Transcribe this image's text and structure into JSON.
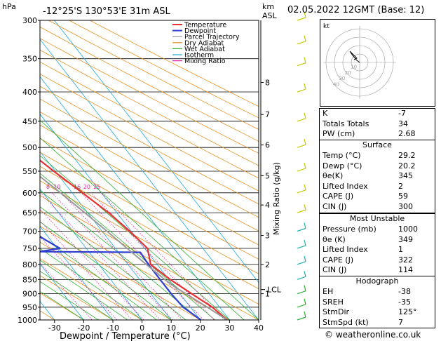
{
  "header": {
    "station": "-12°25'S  130°53'E  31m  ASL",
    "hpa_label": "hPa",
    "km_label": "km",
    "asl_label": "ASL",
    "datetime": "02.05.2022  12GMT  (Base: 12)"
  },
  "legend": [
    {
      "name": "Temperature",
      "color": "#e83030"
    },
    {
      "name": "Dewpoint",
      "color": "#2f3fd0"
    },
    {
      "name": "Parcel Trajectory",
      "color": "#999999"
    },
    {
      "name": "Dry Adiabat",
      "color": "#e8901c"
    },
    {
      "name": "Wet Adiabat",
      "color": "#30b030"
    },
    {
      "name": "Isotherm",
      "color": "#20a8e0"
    },
    {
      "name": "Mixing Ratio",
      "color": "#e020a0"
    }
  ],
  "chart_data": {
    "type": "line",
    "xlabel": "Dewpoint / Temperature (°C)",
    "ylabel_right": "Mixing Ratio (g/kg)",
    "xlim": [
      -35,
      40
    ],
    "pressure_range": [
      300,
      1000
    ],
    "x_ticks": [
      "-30",
      "-20",
      "-10",
      "0",
      "10",
      "20",
      "30",
      "40"
    ],
    "pressure_ticks": [
      "300",
      "350",
      "400",
      "450",
      "500",
      "550",
      "600",
      "650",
      "700",
      "750",
      "800",
      "850",
      "900",
      "950",
      "1000"
    ],
    "km_ticks": [
      {
        "label": "8",
        "p": 385
      },
      {
        "label": "7",
        "p": 438
      },
      {
        "label": "6",
        "p": 495
      },
      {
        "label": "5",
        "p": 560
      },
      {
        "label": "4",
        "p": 630
      },
      {
        "label": "3",
        "p": 712
      },
      {
        "label": "2",
        "p": 800
      },
      {
        "label": "1",
        "p": 900
      }
    ],
    "lcl_label": "LCL",
    "lcl_p": 885,
    "mixing_ratio_labels": [
      "1",
      "2",
      "3",
      "4",
      "6",
      "8",
      "10",
      "16",
      "20",
      "25"
    ],
    "mixing_ratio_p": 590,
    "series": [
      {
        "name": "Temperature",
        "points": [
          [
            29.2,
            1000
          ],
          [
            27.5,
            950
          ],
          [
            24,
            900
          ],
          [
            20.5,
            850
          ],
          [
            17.8,
            800
          ],
          [
            21,
            750
          ],
          [
            19.5,
            700
          ],
          [
            17.2,
            650
          ],
          [
            13.5,
            600
          ],
          [
            9.5,
            550
          ],
          [
            5.5,
            500
          ],
          [
            0.5,
            450
          ],
          [
            -6.2,
            400
          ],
          [
            -11,
            380
          ],
          [
            -13,
            350
          ]
        ]
      },
      {
        "name": "Dewpoint",
        "points": [
          [
            20.2,
            1000
          ],
          [
            17.5,
            950
          ],
          [
            17,
            900
          ],
          [
            17,
            850
          ],
          [
            17,
            800
          ],
          [
            17.5,
            762
          ],
          [
            -17,
            760
          ],
          [
            -9,
            750
          ],
          [
            -14.5,
            700
          ],
          [
            -16,
            650
          ],
          [
            -14,
            600
          ],
          [
            -12,
            550
          ],
          [
            -14,
            500
          ],
          [
            -14,
            450
          ],
          [
            -5,
            400
          ],
          [
            -8,
            380
          ],
          [
            -19,
            375
          ],
          [
            -16,
            350
          ],
          [
            -4,
            345
          ],
          [
            -17,
            340
          ],
          [
            -18,
            300
          ]
        ]
      },
      {
        "name": "Parcel Trajectory",
        "points": [
          [
            29.2,
            1000
          ],
          [
            25.8,
            950
          ],
          [
            22,
            900
          ],
          [
            20,
            875
          ],
          [
            18.6,
            850
          ],
          [
            16.3,
            800
          ],
          [
            14,
            750
          ],
          [
            11.7,
            700
          ],
          [
            9,
            650
          ],
          [
            6,
            600
          ],
          [
            2.5,
            550
          ],
          [
            -1.6,
            500
          ],
          [
            -6.5,
            450
          ],
          [
            -12.5,
            400
          ]
        ]
      }
    ],
    "hodograph": {
      "label": "kt",
      "ring_labels": [
        "10",
        "20",
        "30",
        "40"
      ]
    }
  },
  "indices": {
    "rows": [
      {
        "label": "K",
        "value": "-7"
      },
      {
        "label": "Totals Totals",
        "value": "34"
      },
      {
        "label": "PW (cm)",
        "value": "2.68"
      }
    ]
  },
  "surface": {
    "title": "Surface",
    "rows": [
      {
        "label": "Temp (°C)",
        "value": "29.2"
      },
      {
        "label": "Dewp (°C)",
        "value": "20.2"
      },
      {
        "label": "θe(K)",
        "value": "345"
      },
      {
        "label": "Lifted Index",
        "value": "2"
      },
      {
        "label": "CAPE (J)",
        "value": "59"
      },
      {
        "label": "CIN (J)",
        "value": "300"
      }
    ]
  },
  "most_unstable": {
    "title": "Most Unstable",
    "rows": [
      {
        "label": "Pressure (mb)",
        "value": "1000"
      },
      {
        "label": "θe (K)",
        "value": "349"
      },
      {
        "label": "Lifted Index",
        "value": "1"
      },
      {
        "label": "CAPE (J)",
        "value": "322"
      },
      {
        "label": "CIN (J)",
        "value": "114"
      }
    ]
  },
  "hodograph_table": {
    "title": "Hodograph",
    "rows": [
      {
        "label": "EH",
        "value": "-38"
      },
      {
        "label": "SREH",
        "value": "-35"
      },
      {
        "label": "StmDir",
        "value": "125°"
      },
      {
        "label": "StmSpd (kt)",
        "value": "7"
      }
    ]
  },
  "footer": {
    "copyright": "© weatheronline.co.uk"
  }
}
